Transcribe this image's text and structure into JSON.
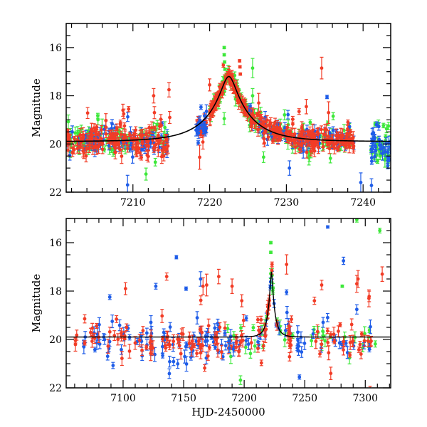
{
  "chart_data": [
    {
      "panel": "top",
      "type": "scatter",
      "title": "",
      "xlabel": "",
      "ylabel": "Magnitude",
      "xlim": [
        7201.3,
        7243.6
      ],
      "ylim": [
        22,
        15
      ],
      "y_inverted": true,
      "x_major_ticks": [
        7210,
        7220,
        7230,
        7240
      ],
      "x_tick_labels": [
        "7210",
        "7220",
        "7230",
        "7240"
      ],
      "x_minor_step": 2,
      "y_major_ticks": [
        16,
        18,
        20,
        22
      ],
      "y_tick_labels": [
        "16",
        "18",
        "20",
        "22"
      ],
      "y_minor_step": 0.5,
      "grid": false,
      "legend": "none",
      "series": [
        {
          "name": "red",
          "color": "#f23c26"
        },
        {
          "name": "blue",
          "color": "#1f5de8"
        },
        {
          "name": "green",
          "color": "#3de83a"
        }
      ],
      "model_curve": {
        "color": "#000000",
        "t0": 7222.5,
        "u0": 0.16,
        "tE": 5.5,
        "baseline_mag": 19.9,
        "peak_mag": 17.2,
        "t_range": [
          7201.3,
          7243.6
        ]
      },
      "segments": [
        {
          "t": [
            7201.3,
            7214.6
          ],
          "base": 19.85,
          "scatter": 0.35,
          "density": 22,
          "series": [
            "red",
            "blue",
            "green"
          ]
        },
        {
          "t": [
            7218.2,
            7219.6
          ],
          "base": 19.3,
          "scatter": 0.25,
          "density": 30,
          "series": [
            "blue",
            "red"
          ]
        },
        {
          "t": [
            7220.0,
            7225.2
          ],
          "follow_model": true,
          "scatter": 0.12,
          "density": 40,
          "series": [
            "red",
            "green"
          ]
        },
        {
          "t": [
            7225.2,
            7238.8
          ],
          "follow_model": true,
          "scatter": 0.3,
          "density": 24,
          "series": [
            "red",
            "blue",
            "green"
          ]
        },
        {
          "t": [
            7241.0,
            7243.6
          ],
          "base": 20.1,
          "scatter": 0.5,
          "density": 22,
          "series": [
            "blue",
            "green"
          ]
        }
      ],
      "outliers": [
        {
          "series": "red",
          "t": 7208.7,
          "mag": 18.6,
          "err": 0.25
        },
        {
          "series": "red",
          "t": 7208.8,
          "mag": 18.75,
          "err": 0.2
        },
        {
          "series": "red",
          "t": 7212.7,
          "mag": 18.0,
          "err": 0.3
        },
        {
          "series": "red",
          "t": 7212.8,
          "mag": 18.7,
          "err": 0.25
        },
        {
          "series": "red",
          "t": 7214.7,
          "mag": 17.75,
          "err": 0.3
        },
        {
          "series": "red",
          "t": 7214.8,
          "mag": 18.9,
          "err": 0.25
        },
        {
          "series": "red",
          "t": 7218.7,
          "mag": 20.55,
          "err": 0.5
        },
        {
          "series": "red",
          "t": 7220.0,
          "mag": 17.55,
          "err": 0.25
        },
        {
          "series": "green",
          "t": 7221.9,
          "mag": 16.0,
          "err": 0.05
        },
        {
          "series": "green",
          "t": 7221.9,
          "mag": 16.3,
          "err": 0.05
        },
        {
          "series": "green",
          "t": 7221.95,
          "mag": 16.6,
          "err": 0.05
        },
        {
          "series": "green",
          "t": 7222.0,
          "mag": 16.9,
          "err": 0.05
        },
        {
          "series": "green",
          "t": 7221.9,
          "mag": 18.95,
          "err": 0.25
        },
        {
          "series": "red",
          "t": 7223.9,
          "mag": 16.55,
          "err": 0.05
        },
        {
          "series": "red",
          "t": 7223.95,
          "mag": 16.8,
          "err": 0.05
        },
        {
          "series": "red",
          "t": 7224.0,
          "mag": 17.1,
          "err": 0.05
        },
        {
          "series": "green",
          "t": 7225.6,
          "mag": 16.85,
          "err": 0.4
        },
        {
          "series": "green",
          "t": 7225.6,
          "mag": 18.0,
          "err": 0.3
        },
        {
          "series": "red",
          "t": 7226.4,
          "mag": 18.3,
          "err": 0.4
        },
        {
          "series": "red",
          "t": 7232.6,
          "mag": 18.45,
          "err": 0.3
        },
        {
          "series": "red",
          "t": 7234.6,
          "mag": 16.85,
          "err": 0.45
        },
        {
          "series": "blue",
          "t": 7235.3,
          "mag": 18.05,
          "err": 0.07
        },
        {
          "series": "red",
          "t": 7235.5,
          "mag": 18.7,
          "err": 0.45
        },
        {
          "series": "green",
          "t": 7236.1,
          "mag": 18.85,
          "err": 0.15
        },
        {
          "series": "blue",
          "t": 7209.3,
          "mag": 21.7,
          "err": 0.4
        },
        {
          "series": "green",
          "t": 7211.7,
          "mag": 21.25,
          "err": 0.25
        },
        {
          "series": "blue",
          "t": 7230.4,
          "mag": 21.0,
          "err": 0.3
        },
        {
          "series": "blue",
          "t": 7239.7,
          "mag": 21.6,
          "err": 0.4
        }
      ]
    },
    {
      "panel": "bottom",
      "type": "scatter",
      "title": "",
      "xlabel": "HJD-2450000",
      "ylabel": "Magnitude",
      "xlim": [
        7053,
        7321
      ],
      "ylim": [
        22,
        15
      ],
      "y_inverted": true,
      "x_major_ticks": [
        7100,
        7150,
        7200,
        7250,
        7300
      ],
      "x_tick_labels": [
        "7100",
        "7150",
        "7200",
        "7250",
        "7300"
      ],
      "x_minor_step": 10,
      "y_major_ticks": [
        16,
        18,
        20,
        22
      ],
      "y_tick_labels": [
        "16",
        "18",
        "20",
        "22"
      ],
      "y_minor_step": 0.5,
      "grid": false,
      "legend": "none",
      "series": [
        {
          "name": "red",
          "color": "#f23c26"
        },
        {
          "name": "blue",
          "color": "#1f5de8"
        },
        {
          "name": "green",
          "color": "#3de83a"
        }
      ],
      "model_curve": {
        "color": "#000000",
        "t0": 7222.5,
        "u0": 0.16,
        "tE": 5.5,
        "baseline_mag": 19.9,
        "peak_mag": 17.2,
        "t_range": [
          7053,
          7321
        ]
      },
      "segments": [
        {
          "t": [
            7058,
            7064
          ],
          "base": 19.95,
          "scatter": 0.2,
          "density": 3,
          "series": [
            "red"
          ]
        },
        {
          "t": [
            7066,
            7106
          ],
          "base": 20.0,
          "scatter": 0.4,
          "density": 6,
          "series": [
            "red",
            "blue"
          ]
        },
        {
          "t": [
            7109,
            7128
          ],
          "base": 20.0,
          "scatter": 0.4,
          "density": 7,
          "series": [
            "red",
            "blue"
          ]
        },
        {
          "t": [
            7130,
            7183
          ],
          "base": 20.05,
          "scatter": 0.45,
          "density": 9,
          "series": [
            "red",
            "blue"
          ]
        },
        {
          "t": [
            7183,
            7193
          ],
          "base": 20.1,
          "scatter": 0.5,
          "density": 8,
          "series": [
            "blue",
            "red",
            "green"
          ]
        },
        {
          "t": [
            7193,
            7218
          ],
          "base": 20.0,
          "scatter": 0.45,
          "density": 9,
          "series": [
            "red",
            "blue",
            "green"
          ]
        },
        {
          "t": [
            7218,
            7228
          ],
          "follow_model": true,
          "scatter": 0.2,
          "density": 14,
          "series": [
            "red",
            "green",
            "blue"
          ]
        },
        {
          "t": [
            7228,
            7243
          ],
          "follow_model": true,
          "scatter": 0.4,
          "density": 8,
          "series": [
            "red",
            "blue",
            "green"
          ]
        },
        {
          "t": [
            7243,
            7250
          ],
          "base": 20.2,
          "scatter": 0.5,
          "density": 8,
          "series": [
            "blue"
          ]
        },
        {
          "t": [
            7250,
            7300
          ],
          "base": 20.05,
          "scatter": 0.45,
          "density": 6,
          "series": [
            "red",
            "blue",
            "green"
          ]
        },
        {
          "t": [
            7300,
            7312
          ],
          "base": 20.0,
          "scatter": 0.45,
          "density": 5,
          "series": [
            "red",
            "blue",
            "green"
          ]
        }
      ],
      "outliers": [
        {
          "series": "blue",
          "t": 7089,
          "mag": 18.25,
          "err": 0.1
        },
        {
          "series": "red",
          "t": 7102,
          "mag": 17.9,
          "err": 0.25
        },
        {
          "series": "blue",
          "t": 7127,
          "mag": 17.8,
          "err": 0.12
        },
        {
          "series": "red",
          "t": 7136,
          "mag": 17.4,
          "err": 0.15
        },
        {
          "series": "blue",
          "t": 7144,
          "mag": 16.6,
          "err": 0.07
        },
        {
          "series": "blue",
          "t": 7152,
          "mag": 17.9,
          "err": 0.07
        },
        {
          "series": "blue",
          "t": 7164,
          "mag": 17.5,
          "err": 0.3
        },
        {
          "series": "red",
          "t": 7166,
          "mag": 17.8,
          "err": 0.35
        },
        {
          "series": "red",
          "t": 7169,
          "mag": 17.75,
          "err": 0.45
        },
        {
          "series": "red",
          "t": 7179,
          "mag": 17.4,
          "err": 0.3
        },
        {
          "series": "red",
          "t": 7190,
          "mag": 17.8,
          "err": 0.3
        },
        {
          "series": "red",
          "t": 7198,
          "mag": 18.4,
          "err": 0.25
        },
        {
          "series": "green",
          "t": 7222,
          "mag": 16.0,
          "err": 0.05
        },
        {
          "series": "green",
          "t": 7222,
          "mag": 16.4,
          "err": 0.05
        },
        {
          "series": "red",
          "t": 7223,
          "mag": 16.9,
          "err": 0.1
        },
        {
          "series": "red",
          "t": 7235,
          "mag": 16.9,
          "err": 0.4
        },
        {
          "series": "blue",
          "t": 7235,
          "mag": 18.05,
          "err": 0.1
        },
        {
          "series": "red",
          "t": 7258,
          "mag": 18.4,
          "err": 0.15
        },
        {
          "series": "red",
          "t": 7264,
          "mag": 17.75,
          "err": 0.2
        },
        {
          "series": "blue",
          "t": 7269,
          "mag": 15.35,
          "err": 0.05
        },
        {
          "series": "green",
          "t": 7281,
          "mag": 17.8,
          "err": 0.05
        },
        {
          "series": "blue",
          "t": 7282,
          "mag": 16.75,
          "err": 0.15
        },
        {
          "series": "green",
          "t": 7293,
          "mag": 15.05,
          "err": 0.1
        },
        {
          "series": "red",
          "t": 7293,
          "mag": 17.7,
          "err": 0.35
        },
        {
          "series": "red",
          "t": 7294,
          "mag": 17.5,
          "err": 0.35
        },
        {
          "series": "red",
          "t": 7303,
          "mag": 18.3,
          "err": 0.35
        },
        {
          "series": "green",
          "t": 7312,
          "mag": 15.5,
          "err": 0.1
        },
        {
          "series": "red",
          "t": 7314,
          "mag": 17.3,
          "err": 0.3
        }
      ]
    }
  ]
}
